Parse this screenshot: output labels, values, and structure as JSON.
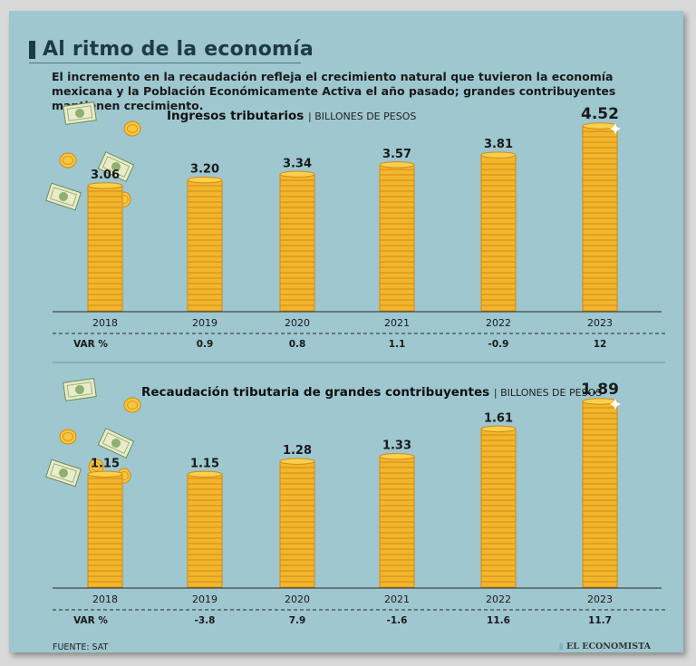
{
  "title": "Al ritmo de la economía",
  "subtitle": "El incremento en la recaudación refleja el crecimiento natural que tuvieron la economía mexicana y la Población Económicamente Activa el año pasado; grandes contribuyentes mantienen crecimiento.",
  "source": "FUENTE: SAT",
  "brand": "EL ECONOMISTA",
  "colors": {
    "background": "#9ec7cf",
    "coin": "#f2b62c",
    "coin_edge": "#d18a15",
    "title": "#1e3a4a"
  },
  "chart_data": [
    {
      "type": "bar",
      "title": "Ingresos tributarios",
      "unit": "BILLONES DE PESOS",
      "categories": [
        "2018",
        "2019",
        "2020",
        "2021",
        "2022",
        "2023"
      ],
      "values": [
        3.06,
        3.2,
        3.34,
        3.57,
        3.81,
        4.52
      ],
      "value_labels": [
        "3.06",
        "3.20",
        "3.34",
        "3.57",
        "3.81",
        "4.52"
      ],
      "var_label": "VAR %",
      "var_values": [
        "0.9",
        "0.8",
        "1.1",
        "-0.9",
        "12"
      ],
      "ylim": [
        0,
        4.52
      ]
    },
    {
      "type": "bar",
      "title": "Recaudación tributaria de grandes contribuyentes",
      "unit": "BILLONES DE PESOS",
      "categories": [
        "2018",
        "2019",
        "2020",
        "2021",
        "2022",
        "2023"
      ],
      "values": [
        1.15,
        1.15,
        1.28,
        1.33,
        1.61,
        1.89
      ],
      "value_labels": [
        "1.15",
        "1.15",
        "1.28",
        "1.33",
        "1.61",
        "1.89"
      ],
      "var_label": "VAR %",
      "var_values": [
        "-3.8",
        "7.9",
        "-1.6",
        "11.6",
        "11.7"
      ],
      "ylim": [
        0,
        1.89
      ]
    }
  ]
}
